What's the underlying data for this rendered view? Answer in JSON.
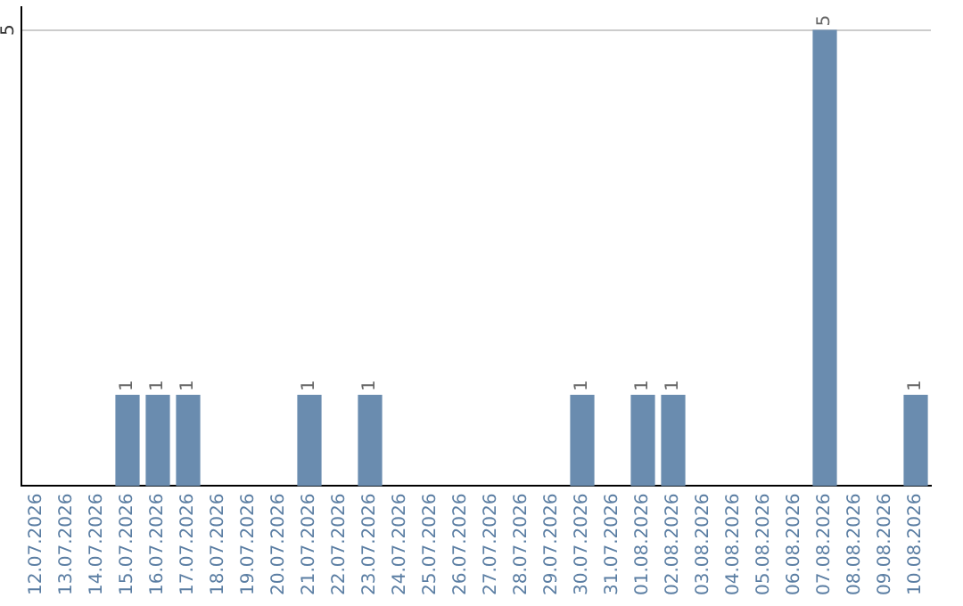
{
  "chart_data": {
    "type": "bar",
    "categories": [
      "12.07.2026",
      "13.07.2026",
      "14.07.2026",
      "15.07.2026",
      "16.07.2026",
      "17.07.2026",
      "18.07.2026",
      "19.07.2026",
      "20.07.2026",
      "21.07.2026",
      "22.07.2026",
      "23.07.2026",
      "24.07.2026",
      "25.07.2026",
      "26.07.2026",
      "27.07.2026",
      "28.07.2026",
      "29.07.2026",
      "30.07.2026",
      "31.07.2026",
      "01.08.2026",
      "02.08.2026",
      "03.08.2026",
      "04.08.2026",
      "05.08.2026",
      "06.08.2026",
      "07.08.2026",
      "08.08.2026",
      "09.08.2026",
      "10.08.2026"
    ],
    "values": [
      0,
      0,
      0,
      1,
      1,
      1,
      0,
      0,
      0,
      1,
      0,
      1,
      0,
      0,
      0,
      0,
      0,
      0,
      1,
      0,
      1,
      1,
      0,
      0,
      0,
      0,
      5,
      0,
      0,
      1
    ],
    "value_labels": [
      null,
      null,
      null,
      "1",
      "1",
      "1",
      null,
      null,
      null,
      "1",
      null,
      "1",
      null,
      null,
      null,
      null,
      null,
      null,
      "1",
      null,
      "1",
      "1",
      null,
      null,
      null,
      null,
      "5",
      null,
      null,
      "1"
    ],
    "color": "#6a8caf",
    "ylim": [
      0,
      5.25
    ],
    "yticks": [
      5
    ],
    "grid": "y",
    "legend": false
  }
}
